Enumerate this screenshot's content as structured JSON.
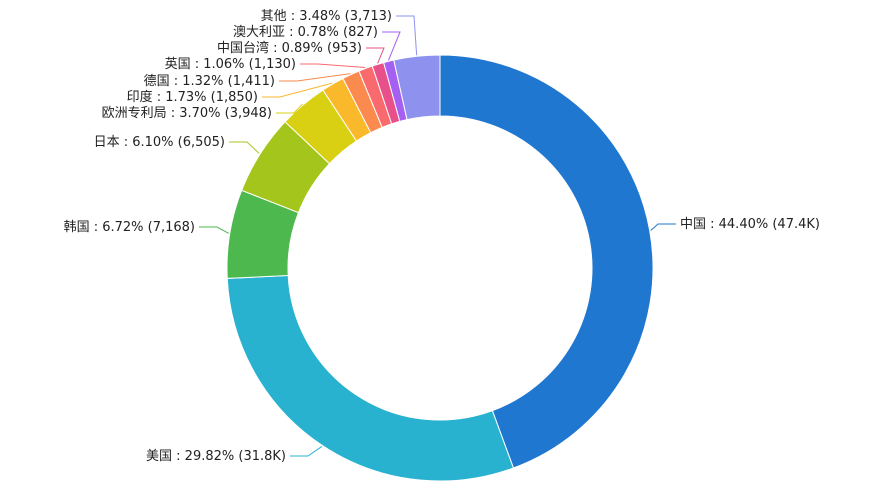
{
  "chart_data": {
    "type": "pie",
    "variant": "donut",
    "title": "",
    "legend": "none",
    "slices": [
      {
        "name": "中国",
        "label": "中国 : 44.40% (47.4K)",
        "percent": 44.4,
        "value_text": "47.4K",
        "color": "#1f77d0"
      },
      {
        "name": "美国",
        "label": "美国 : 29.82% (31.8K)",
        "percent": 29.82,
        "value_text": "31.8K",
        "color": "#29b2d0"
      },
      {
        "name": "韩国",
        "label": "韩国 : 6.72% (7,168)",
        "percent": 6.72,
        "value": 7168,
        "color": "#4cb84e"
      },
      {
        "name": "日本",
        "label": "日本 : 6.10% (6,505)",
        "percent": 6.1,
        "value": 6505,
        "color": "#a4c61c"
      },
      {
        "name": "欧洲专利局",
        "label": "欧洲专利局 : 3.70% (3,948)",
        "percent": 3.7,
        "value": 3948,
        "color": "#d9cf13"
      },
      {
        "name": "印度",
        "label": "印度 : 1.73% (1,850)",
        "percent": 1.73,
        "value": 1850,
        "color": "#f9b92a"
      },
      {
        "name": "德国",
        "label": "德国 : 1.32% (1,411)",
        "percent": 1.32,
        "value": 1411,
        "color": "#fb8a4e"
      },
      {
        "name": "英国",
        "label": "英国 : 1.06% (1,130)",
        "percent": 1.06,
        "value": 1130,
        "color": "#f96a6e"
      },
      {
        "name": "中国台湾",
        "label": "中国台湾 : 0.89% (953)",
        "percent": 0.89,
        "value": 953,
        "color": "#e8508a"
      },
      {
        "name": "澳大利亚",
        "label": "澳大利亚 : 0.78% (827)",
        "percent": 0.78,
        "value": 827,
        "color": "#a560f2"
      },
      {
        "name": "其他",
        "label": "其他 : 3.48% (3,713)",
        "percent": 3.48,
        "value": 3713,
        "color": "#8e92ee"
      }
    ]
  }
}
